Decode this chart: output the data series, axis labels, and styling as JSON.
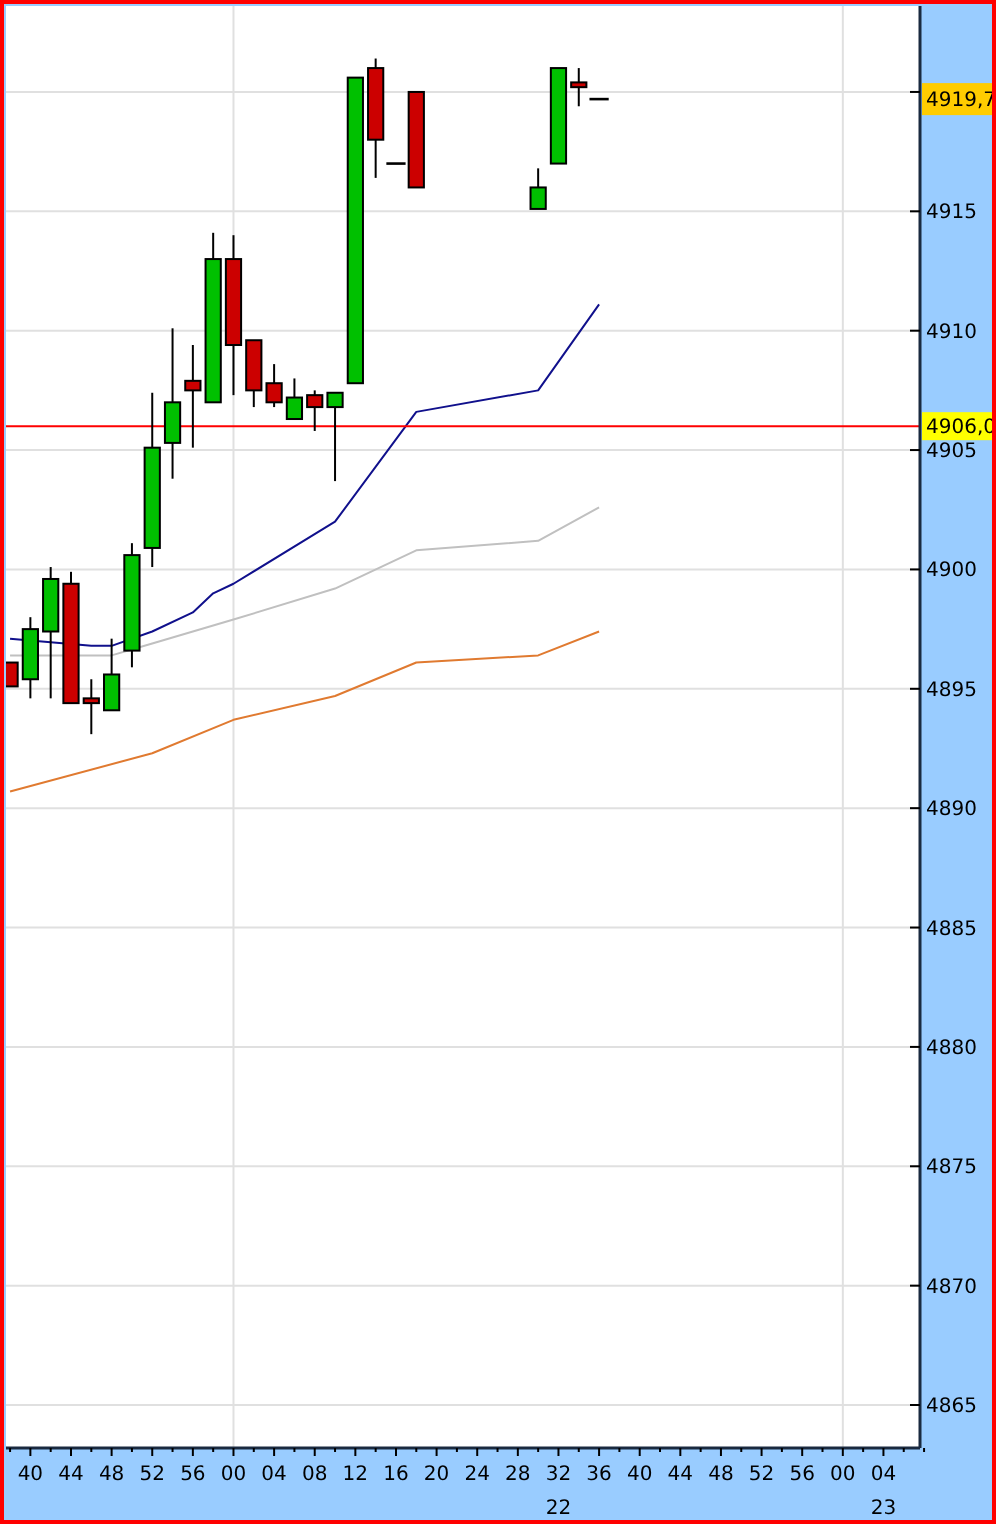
{
  "chart_data": {
    "type": "candlestick",
    "categories": [
      null,
      "40",
      null,
      "44",
      null,
      "48",
      null,
      "52",
      null,
      "56",
      null,
      "00",
      null,
      "04",
      null,
      "08",
      null,
      "12",
      null,
      "16",
      null,
      "20",
      null,
      "24",
      null,
      "28",
      null,
      "32\n22",
      null,
      "36",
      null,
      "40",
      null,
      "44",
      null,
      "48",
      null,
      "52",
      null,
      "56",
      null,
      "00",
      null,
      "04\n23",
      null,
      null
    ],
    "ohlc": [
      [
        4896.1,
        4896.1,
        4895.1,
        4895.1
      ],
      [
        4895.4,
        4898.0,
        4894.6,
        4897.5
      ],
      [
        4897.4,
        4900.1,
        4894.6,
        4899.6
      ],
      [
        4899.4,
        4899.9,
        4894.4,
        4894.4
      ],
      [
        4894.6,
        4895.4,
        4893.1,
        4894.4
      ],
      [
        4894.1,
        4897.1,
        4894.1,
        4895.6
      ],
      [
        4896.6,
        4901.1,
        4895.9,
        4900.6
      ],
      [
        4900.9,
        4907.4,
        4900.1,
        4905.1
      ],
      [
        4905.3,
        4910.1,
        4903.8,
        4907.0
      ],
      [
        4907.9,
        4909.4,
        4905.1,
        4907.5
      ],
      [
        4907.0,
        4914.1,
        4907.0,
        4913.0
      ],
      [
        4913.0,
        4914.0,
        4907.3,
        4909.4
      ],
      [
        4909.6,
        4909.6,
        4906.8,
        4907.5
      ],
      [
        4907.8,
        4908.6,
        4906.8,
        4907.0
      ],
      [
        4906.3,
        4908.0,
        4906.3,
        4907.2
      ],
      [
        4907.3,
        4907.5,
        4905.8,
        4906.8
      ],
      [
        4906.8,
        4907.4,
        4903.7,
        4907.4
      ],
      [
        4907.8,
        4920.6,
        4907.8,
        4920.6
      ],
      [
        4921.0,
        4921.4,
        4916.4,
        4918.0
      ],
      [
        4917.0,
        4917.0,
        4917.0,
        4917.0
      ],
      [
        4920.0,
        4920.0,
        4916.0,
        4916.0
      ],
      null,
      null,
      null,
      null,
      null,
      [
        4915.1,
        4916.8,
        4915.1,
        4916.0
      ],
      [
        4917.0,
        4921.0,
        4917.0,
        4921.0
      ],
      [
        4920.4,
        4921.0,
        4919.4,
        4920.2
      ],
      [
        4919.7,
        4919.7,
        4919.7,
        4919.7
      ],
      null,
      null,
      null,
      null,
      null,
      null,
      null,
      null,
      null,
      null,
      null,
      null,
      null,
      null,
      null,
      null
    ],
    "colors": [
      "#cc0000",
      "#00c000",
      "#00c000",
      "#cc0000",
      "#cc0000",
      "#00c000",
      "#00c000",
      "#00c000",
      "#00c000",
      "#cc0000",
      "#00c000",
      "#cc0000",
      "#cc0000",
      "#cc0000",
      "#00c000",
      "#cc0000",
      "#00c000",
      "#00c000",
      "#cc0000",
      "#000000",
      "#cc0000",
      null,
      null,
      null,
      null,
      null,
      "#00c000",
      "#00c000",
      "#cc0000",
      "#000000",
      null,
      null,
      null,
      null,
      null,
      null,
      null,
      null,
      null,
      null,
      null,
      null,
      null,
      null,
      null,
      null
    ],
    "series": [
      {
        "type": "line",
        "color": "#10108c",
        "values": [
          4897.1,
          null,
          null,
          null,
          4896.8,
          4896.8,
          null,
          4897.4,
          null,
          4898.2,
          4899.0,
          4899.4,
          null,
          null,
          null,
          null,
          4902.0,
          null,
          null,
          null,
          4906.6,
          null,
          null,
          null,
          null,
          null,
          4907.5,
          null,
          null,
          4911.1,
          null,
          null,
          null,
          null,
          null,
          null,
          null,
          null,
          null,
          null,
          null,
          null,
          null,
          null,
          null,
          null
        ]
      },
      {
        "type": "line",
        "color": "#c0c0c0",
        "values": [
          4896.4,
          null,
          null,
          null,
          null,
          4896.4,
          null,
          4896.9,
          null,
          null,
          null,
          4897.9,
          null,
          null,
          null,
          null,
          4899.2,
          null,
          null,
          null,
          4900.8,
          null,
          null,
          null,
          null,
          null,
          4901.2,
          null,
          null,
          4902.6,
          null,
          null,
          null,
          null,
          null,
          null,
          null,
          null,
          null,
          null,
          null,
          null,
          null,
          null,
          null,
          null
        ]
      },
      {
        "type": "line",
        "color": "#e07a30",
        "values": [
          4890.7,
          null,
          null,
          null,
          null,
          null,
          null,
          4892.3,
          null,
          null,
          null,
          4893.7,
          null,
          null,
          null,
          null,
          4894.7,
          null,
          null,
          null,
          4896.1,
          null,
          null,
          null,
          null,
          null,
          4896.4,
          null,
          null,
          4897.4,
          null,
          null,
          null,
          null,
          null,
          null,
          null,
          null,
          null,
          null,
          null,
          null,
          null,
          null,
          null,
          null
        ]
      }
    ],
    "ylim": [
      4863.2,
      4923.6
    ],
    "yticks": [
      4865,
      4870,
      4875,
      4880,
      4885,
      4890,
      4895,
      4900,
      4905,
      4910,
      4915,
      {
        "value": 4920,
        "label": null
      }
    ],
    "grid": true,
    "ref_lines": [
      {
        "axis": "y",
        "value": 4906.0,
        "label": "4906,0",
        "color": "#ff0000"
      }
    ],
    "annotations": [
      "4919,7"
    ]
  }
}
